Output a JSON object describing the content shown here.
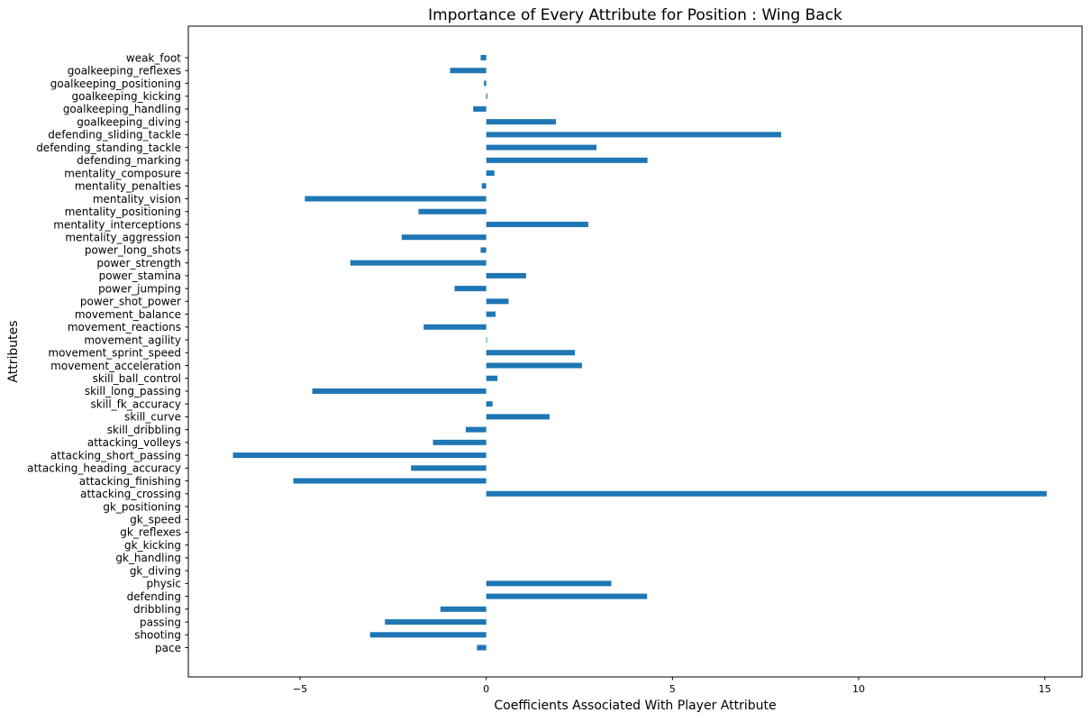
{
  "chart_data": {
    "type": "bar",
    "orientation": "horizontal",
    "title": "Importance of Every Attribute for Position : Wing Back",
    "xlabel": "Coefficients Associated With Player Attribute",
    "ylabel": "Attributes",
    "xlim": [
      -8.0,
      16.0
    ],
    "xticks": [
      -5,
      0,
      5,
      10,
      15
    ],
    "xtick_labels": [
      "−5",
      "0",
      "5",
      "10",
      "15"
    ],
    "grid": false,
    "bar_color": "#1f77b4",
    "categories": [
      "pace",
      "shooting",
      "passing",
      "dribbling",
      "defending",
      "physic",
      "gk_diving",
      "gk_handling",
      "gk_kicking",
      "gk_reflexes",
      "gk_speed",
      "gk_positioning",
      "attacking_crossing",
      "attacking_finishing",
      "attacking_heading_accuracy",
      "attacking_short_passing",
      "attacking_volleys",
      "skill_dribbling",
      "skill_curve",
      "skill_fk_accuracy",
      "skill_long_passing",
      "skill_ball_control",
      "movement_acceleration",
      "movement_sprint_speed",
      "movement_agility",
      "movement_reactions",
      "movement_balance",
      "power_shot_power",
      "power_jumping",
      "power_stamina",
      "power_strength",
      "power_long_shots",
      "mentality_aggression",
      "mentality_interceptions",
      "mentality_positioning",
      "mentality_vision",
      "mentality_penalties",
      "mentality_composure",
      "defending_marking",
      "defending_standing_tackle",
      "defending_sliding_tackle",
      "goalkeeping_diving",
      "goalkeeping_handling",
      "goalkeeping_kicking",
      "goalkeeping_positioning",
      "goalkeeping_reflexes",
      "weak_foot"
    ],
    "values": [
      -0.25,
      -3.12,
      -2.72,
      -1.23,
      4.32,
      3.36,
      0,
      0,
      0,
      0,
      0,
      0,
      15.05,
      -5.18,
      -2.02,
      -6.8,
      -1.43,
      -0.55,
      1.7,
      0.17,
      -4.67,
      0.3,
      2.57,
      2.38,
      0.02,
      -1.68,
      0.25,
      0.6,
      -0.85,
      1.07,
      -3.65,
      -0.15,
      -2.27,
      2.74,
      -1.82,
      -4.87,
      -0.12,
      0.22,
      4.33,
      2.96,
      7.92,
      1.87,
      -0.35,
      0.03,
      -0.06,
      -0.97,
      -0.15
    ]
  }
}
